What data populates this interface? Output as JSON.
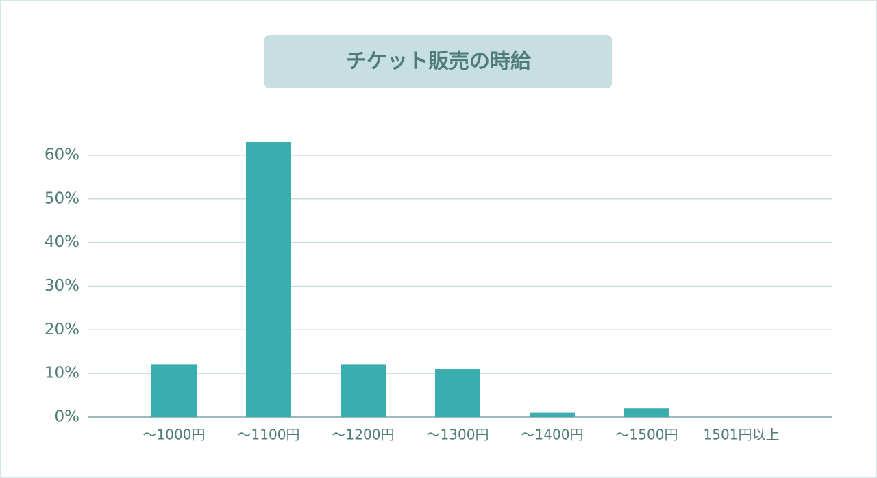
{
  "chart_data": {
    "type": "bar",
    "title": "チケット販売の時給",
    "categories": [
      "～1000円",
      "～1100円",
      "～1200円",
      "～1300円",
      "～1400円",
      "～1500円",
      "1501円以上"
    ],
    "values": [
      12,
      63,
      12,
      11,
      1,
      2,
      0
    ],
    "color": "#3aadae",
    "ylim": [
      0,
      65
    ],
    "yticks": [
      {
        "value": 0,
        "label": "0%"
      },
      {
        "value": 10,
        "label": "10%"
      },
      {
        "value": 20,
        "label": "20%"
      },
      {
        "value": 30,
        "label": "30%"
      },
      {
        "value": 40,
        "label": "40%"
      },
      {
        "value": 50,
        "label": "50%"
      },
      {
        "value": 60,
        "label": "60%"
      }
    ],
    "grid": true
  }
}
